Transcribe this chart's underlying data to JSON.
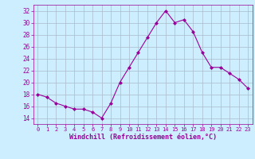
{
  "x": [
    0,
    1,
    2,
    3,
    4,
    5,
    6,
    7,
    8,
    9,
    10,
    11,
    12,
    13,
    14,
    15,
    16,
    17,
    18,
    19,
    20,
    21,
    22,
    23
  ],
  "y": [
    18,
    17.5,
    16.5,
    16,
    15.5,
    15.5,
    15,
    14,
    16.5,
    20,
    22.5,
    25,
    27.5,
    30,
    32,
    30,
    30.5,
    28.5,
    25,
    22.5,
    22.5,
    21.5,
    20.5,
    19
  ],
  "line_color": "#990099",
  "marker": "D",
  "marker_size": 2.0,
  "bg_color": "#cceeff",
  "grid_color": "#aabbcc",
  "xlabel": "Windchill (Refroidissement éolien,°C)",
  "xlabel_color": "#990099",
  "tick_color": "#990099",
  "xlim": [
    -0.5,
    23.5
  ],
  "ylim": [
    13,
    33
  ],
  "yticks": [
    14,
    16,
    18,
    20,
    22,
    24,
    26,
    28,
    30,
    32
  ],
  "xticks": [
    0,
    1,
    2,
    3,
    4,
    5,
    6,
    7,
    8,
    9,
    10,
    11,
    12,
    13,
    14,
    15,
    16,
    17,
    18,
    19,
    20,
    21,
    22,
    23
  ]
}
